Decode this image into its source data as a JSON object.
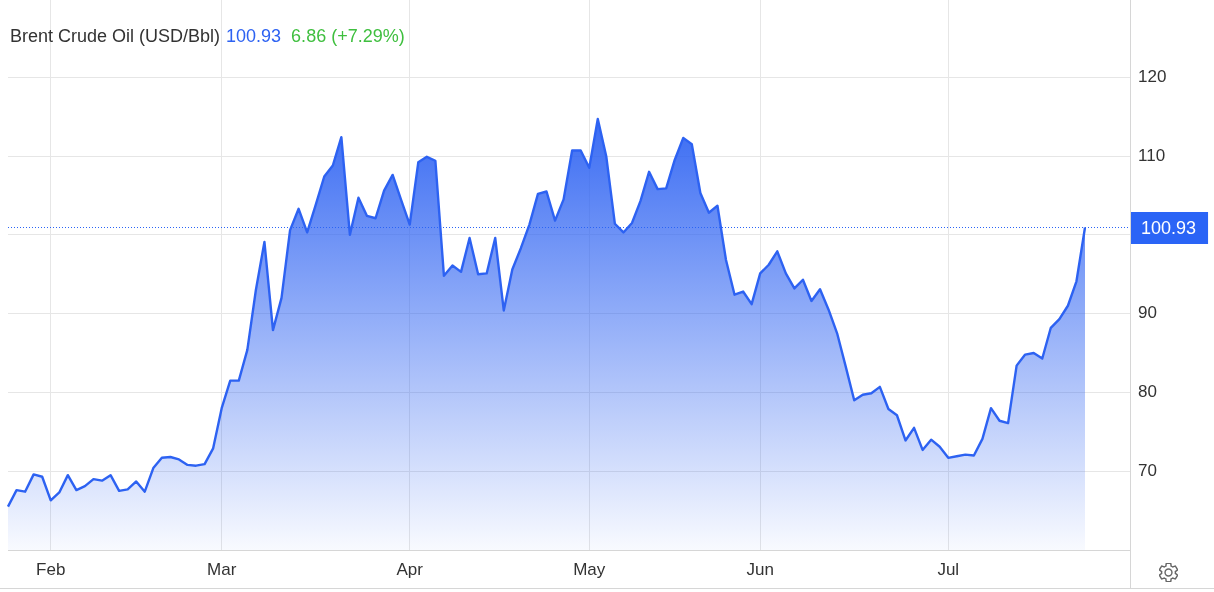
{
  "chart_data": {
    "type": "area",
    "title": "Brent Crude Oil (USD/Bbl)",
    "annotations": [
      "100.93",
      "6.86 (+7.29%)"
    ],
    "categories": [
      null,
      null,
      null,
      null,
      null,
      "Feb",
      null,
      null,
      null,
      null,
      null,
      null,
      null,
      null,
      null,
      null,
      null,
      null,
      null,
      null,
      null,
      null,
      null,
      null,
      null,
      "Mar",
      null,
      null,
      null,
      null,
      null,
      null,
      null,
      null,
      null,
      null,
      null,
      null,
      null,
      null,
      null,
      null,
      null,
      null,
      null,
      null,
      null,
      "Apr",
      null,
      null,
      null,
      null,
      null,
      null,
      null,
      null,
      null,
      null,
      null,
      null,
      null,
      null,
      null,
      null,
      null,
      null,
      null,
      null,
      "May",
      null,
      null,
      null,
      null,
      null,
      null,
      null,
      null,
      null,
      null,
      null,
      null,
      null,
      null,
      null,
      null,
      null,
      null,
      null,
      "Jun",
      null,
      null,
      null,
      null,
      null,
      null,
      null,
      null,
      null,
      null,
      null,
      null,
      null,
      null,
      null,
      null,
      null,
      null,
      null,
      null,
      null,
      "Jul",
      null,
      null,
      null,
      null,
      null,
      null,
      null,
      null,
      null,
      null,
      null,
      null,
      null,
      null,
      null,
      null
    ],
    "values": [
      65.5,
      67.6,
      67.4,
      69.6,
      69.3,
      66.3,
      67.3,
      69.5,
      67.6,
      68.1,
      69.0,
      68.8,
      69.5,
      67.5,
      67.7,
      68.7,
      67.4,
      70.4,
      71.7,
      71.8,
      71.5,
      70.8,
      70.7,
      70.9,
      72.9,
      78.0,
      81.5,
      81.5,
      85.4,
      93.0,
      99.1,
      87.9,
      92.0,
      100.6,
      103.3,
      100.3,
      103.8,
      107.4,
      108.8,
      112.4,
      100.0,
      104.7,
      102.4,
      102.1,
      105.6,
      107.6,
      104.4,
      101.3,
      109.2,
      109.9,
      109.4,
      94.8,
      96.1,
      95.3,
      99.6,
      95.0,
      95.1,
      99.6,
      90.4,
      95.6,
      98.3,
      101.3,
      105.2,
      105.5,
      101.8,
      104.5,
      110.7,
      110.7,
      108.5,
      114.7,
      109.9,
      101.4,
      100.3,
      101.5,
      104.3,
      108.0,
      105.8,
      105.9,
      109.5,
      112.3,
      111.5,
      105.3,
      102.8,
      103.7,
      96.8,
      92.4,
      92.8,
      91.2,
      95.1,
      96.2,
      97.9,
      95.1,
      93.2,
      94.3,
      91.6,
      93.1,
      90.5,
      87.5,
      83.3,
      79.0,
      79.7,
      79.9,
      80.7,
      77.9,
      77.1,
      73.9,
      75.5,
      72.7,
      74.0,
      73.1,
      71.7,
      71.9,
      72.1,
      72.0,
      74.1,
      78.0,
      76.4,
      76.1,
      83.4,
      84.8,
      85.0,
      84.3,
      88.2,
      89.3,
      91.0,
      94.1,
      100.93
    ],
    "color": "#2d62f2",
    "ylim": [
      60,
      129.8
    ],
    "yticks": [
      70,
      80,
      90,
      {
        "value": 100,
        "label": null
      },
      110,
      120
    ],
    "grid": true,
    "ref_lines": [
      {
        "axis": "y",
        "value": 100.93,
        "label": "100.93",
        "color": "#2a64f6",
        "line_style": "dotted"
      }
    ]
  }
}
